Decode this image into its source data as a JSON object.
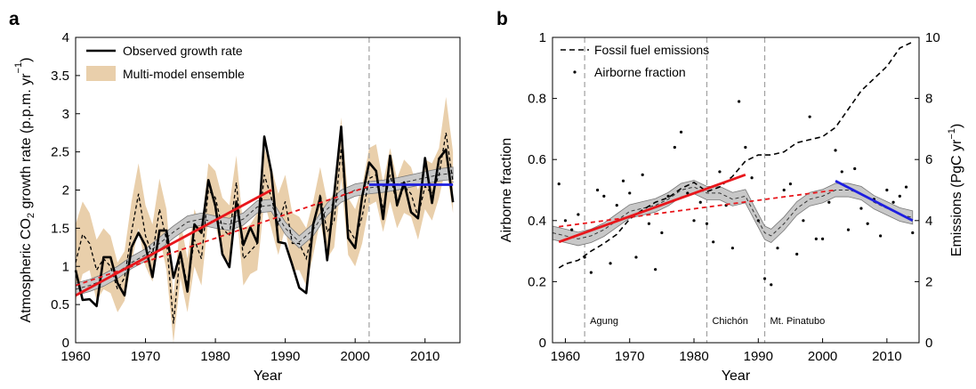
{
  "chart_data": [
    {
      "panel": "a",
      "type": "line",
      "xlabel": "Year",
      "ylabel": {
        "pre": "Atmospheric CO",
        "sub": "2",
        "mid": " growth rate (p.p.m. yr",
        "sup": "−1",
        "post": ")"
      },
      "xlim": [
        1960,
        2015
      ],
      "ylim": [
        0,
        4
      ],
      "xticks": [
        1960,
        1970,
        1980,
        1990,
        2000,
        2010
      ],
      "yticks": [
        0,
        0.5,
        1,
        1.5,
        2,
        2.5,
        3,
        3.5,
        4
      ],
      "legend": [
        "Observed growth rate",
        "Multi-model ensemble"
      ],
      "legend_position": "top-left",
      "colors": {
        "observed": "#000000",
        "ensemble_band": "#e9cfab",
        "trend_red": "#e8161b",
        "trend_blue": "#1f1fe0",
        "smooth_band": "#c8c8c8",
        "vline": "#a0a0a0"
      },
      "vertical_line_x": 2002,
      "x": [
        1960,
        1961,
        1962,
        1963,
        1964,
        1965,
        1966,
        1967,
        1968,
        1969,
        1970,
        1971,
        1972,
        1973,
        1974,
        1975,
        1976,
        1977,
        1978,
        1979,
        1980,
        1981,
        1982,
        1983,
        1984,
        1985,
        1986,
        1987,
        1988,
        1989,
        1990,
        1991,
        1992,
        1993,
        1994,
        1995,
        1996,
        1997,
        1998,
        1999,
        2000,
        2001,
        2002,
        2003,
        2004,
        2005,
        2006,
        2007,
        2008,
        2009,
        2010,
        2011,
        2012,
        2013,
        2014
      ],
      "series": [
        {
          "name": "Observed growth rate",
          "values": [
            0.95,
            0.56,
            0.57,
            0.48,
            1.12,
            1.12,
            0.78,
            0.62,
            1.25,
            1.44,
            1.27,
            0.86,
            1.47,
            1.47,
            0.85,
            1.18,
            0.67,
            1.55,
            1.44,
            2.13,
            1.79,
            1.16,
            0.99,
            1.85,
            1.28,
            1.51,
            1.31,
            2.7,
            2.24,
            1.32,
            1.3,
            1.02,
            0.72,
            0.65,
            1.55,
            1.9,
            1.08,
            1.94,
            2.83,
            1.37,
            1.24,
            1.91,
            2.36,
            2.25,
            1.62,
            2.45,
            1.8,
            2.1,
            1.71,
            1.63,
            2.42,
            1.83,
            2.41,
            2.53,
            1.84
          ]
        },
        {
          "name": "ensemble mean",
          "values": [
            1.05,
            1.42,
            1.3,
            0.95,
            1.1,
            1.0,
            0.7,
            0.85,
            1.45,
            1.95,
            1.4,
            1.15,
            1.75,
            1.35,
            0.25,
            1.2,
            0.75,
            1.35,
            1.1,
            2.0,
            1.9,
            1.5,
            1.4,
            2.1,
            1.1,
            1.2,
            1.3,
            2.2,
            1.9,
            1.55,
            1.85,
            1.3,
            1.3,
            1.1,
            1.5,
            1.95,
            1.45,
            1.6,
            2.55,
            1.5,
            1.35,
            1.65,
            2.15,
            2.2,
            1.75,
            2.2,
            1.8,
            2.05,
            1.95,
            1.65,
            2.05,
            1.95,
            2.2,
            2.75,
            2.1
          ]
        }
      ],
      "ensemble_min": [
        0.55,
        0.9,
        0.95,
        0.55,
        0.7,
        0.65,
        0.4,
        0.55,
        1.05,
        1.5,
        1.0,
        0.8,
        1.4,
        0.95,
        0.0,
        0.85,
        0.4,
        1.0,
        0.75,
        1.65,
        1.55,
        1.15,
        1.05,
        1.75,
        0.75,
        0.9,
        0.95,
        1.85,
        1.5,
        1.15,
        1.5,
        0.95,
        0.95,
        0.75,
        1.15,
        1.6,
        1.1,
        1.25,
        2.15,
        1.15,
        1.0,
        1.3,
        1.8,
        1.85,
        1.45,
        1.85,
        1.5,
        1.7,
        1.65,
        1.35,
        1.75,
        1.6,
        1.9,
        2.3,
        1.7
      ],
      "ensemble_max": [
        1.55,
        1.85,
        1.7,
        1.35,
        1.5,
        1.4,
        1.05,
        1.2,
        1.85,
        2.35,
        1.8,
        1.55,
        2.15,
        1.75,
        0.6,
        1.6,
        1.1,
        1.75,
        1.5,
        2.35,
        2.25,
        1.9,
        1.8,
        2.45,
        1.5,
        1.55,
        1.7,
        2.55,
        2.3,
        1.95,
        2.2,
        1.7,
        1.65,
        1.5,
        1.85,
        2.3,
        1.85,
        1.95,
        2.95,
        1.9,
        1.75,
        2.05,
        2.55,
        2.6,
        2.1,
        2.55,
        2.15,
        2.4,
        2.3,
        2.0,
        2.4,
        2.35,
        2.55,
        3.22,
        2.5
      ],
      "smooth_x": [
        1960,
        1962,
        1964,
        1966,
        1968,
        1970,
        1972,
        1974,
        1976,
        1978,
        1980,
        1982,
        1984,
        1986,
        1988,
        1990,
        1992,
        1994,
        1996,
        1998,
        2000,
        2002,
        2004,
        2006,
        2008,
        2010,
        2012,
        2014
      ],
      "smooth_y": [
        0.7,
        0.75,
        0.82,
        0.92,
        1.05,
        1.15,
        1.3,
        1.45,
        1.58,
        1.62,
        1.58,
        1.55,
        1.62,
        1.78,
        1.8,
        1.5,
        1.32,
        1.48,
        1.75,
        1.92,
        2.0,
        2.03,
        2.05,
        2.08,
        2.12,
        2.16,
        2.2,
        2.22
      ],
      "trends": [
        {
          "x0": 1960,
          "y0": 0.62,
          "x1": 1988,
          "y1": 2.0,
          "color": "red",
          "style": "solid"
        },
        {
          "x0": 1960,
          "y0": 0.75,
          "x1": 2002,
          "y1": 2.05,
          "color": "red",
          "style": "dashed"
        },
        {
          "x0": 2002,
          "y0": 2.07,
          "x1": 2014,
          "y1": 2.07,
          "color": "blue",
          "style": "solid"
        }
      ]
    },
    {
      "panel": "b",
      "type": "scatter",
      "xlabel": "Year",
      "ylabel": "Airborne fraction",
      "ylabel_right": {
        "pre": "Emissions (PgC yr",
        "sup": "−1",
        "post": ")"
      },
      "xlim": [
        1958,
        2015
      ],
      "ylim": [
        0,
        1
      ],
      "ylim_right": [
        0,
        10
      ],
      "xticks": [
        1960,
        1970,
        1980,
        1990,
        2000,
        2010
      ],
      "yticks": [
        0,
        0.2,
        0.4,
        0.6,
        0.8,
        1
      ],
      "yticks_right": [
        0,
        2,
        4,
        6,
        8,
        10
      ],
      "legend": [
        "Fossil fuel emissions",
        "Airborne fraction"
      ],
      "legend_position": "top-left",
      "colors": {
        "points": "#000000",
        "trend_red": "#e8161b",
        "trend_blue": "#1f1fe0",
        "smooth_band": "#c8c8c8",
        "vline": "#a0a0a0"
      },
      "eruptions": [
        {
          "year": 1963,
          "label": "Agung"
        },
        {
          "year": 1982,
          "label": "Chichón"
        },
        {
          "year": 1991,
          "label": "Mt. Pinatubo"
        }
      ],
      "airborne_x": [
        1959,
        1960,
        1961,
        1962,
        1963,
        1964,
        1965,
        1966,
        1967,
        1968,
        1969,
        1970,
        1971,
        1972,
        1973,
        1974,
        1975,
        1976,
        1977,
        1978,
        1979,
        1980,
        1981,
        1982,
        1983,
        1984,
        1985,
        1986,
        1987,
        1988,
        1989,
        1990,
        1991,
        1992,
        1993,
        1994,
        1995,
        1996,
        1997,
        1998,
        1999,
        2000,
        2001,
        2002,
        2003,
        2004,
        2005,
        2006,
        2007,
        2008,
        2009,
        2010,
        2011,
        2012,
        2013,
        2014
      ],
      "airborne_y": [
        0.52,
        0.4,
        0.37,
        0.42,
        0.28,
        0.23,
        0.5,
        0.48,
        0.26,
        0.45,
        0.53,
        0.49,
        0.28,
        0.55,
        0.39,
        0.24,
        0.36,
        0.48,
        0.64,
        0.69,
        0.49,
        0.4,
        0.46,
        0.39,
        0.33,
        0.56,
        0.45,
        0.31,
        0.79,
        0.64,
        0.54,
        0.4,
        0.21,
        0.19,
        0.31,
        0.5,
        0.52,
        0.29,
        0.4,
        0.74,
        0.34,
        0.34,
        0.46,
        0.63,
        0.56,
        0.37,
        0.57,
        0.44,
        0.39,
        0.47,
        0.35,
        0.5,
        0.46,
        0.48,
        0.51,
        0.36
      ],
      "emissions_x": [
        1959,
        1960,
        1962,
        1964,
        1966,
        1968,
        1970,
        1972,
        1974,
        1976,
        1978,
        1980,
        1982,
        1984,
        1986,
        1988,
        1990,
        1992,
        1994,
        1996,
        1998,
        2000,
        2002,
        2004,
        2006,
        2008,
        2010,
        2012,
        2014
      ],
      "emissions_y": [
        2.45,
        2.58,
        2.7,
        3.0,
        3.25,
        3.55,
        4.05,
        4.35,
        4.6,
        4.75,
        5.05,
        5.25,
        4.95,
        5.1,
        5.45,
        5.95,
        6.15,
        6.15,
        6.25,
        6.55,
        6.65,
        6.75,
        7.05,
        7.65,
        8.25,
        8.65,
        9.05,
        9.65,
        9.85
      ],
      "smooth_x": [
        1958,
        1960,
        1962,
        1964,
        1966,
        1968,
        1970,
        1972,
        1974,
        1976,
        1978,
        1980,
        1982,
        1984,
        1986,
        1988,
        1990,
        1991,
        1992,
        1994,
        1996,
        1998,
        2000,
        2002,
        2004,
        2006,
        2008,
        2010,
        2012,
        2014
      ],
      "smooth_y": [
        0.36,
        0.35,
        0.34,
        0.35,
        0.37,
        0.4,
        0.43,
        0.44,
        0.45,
        0.47,
        0.5,
        0.51,
        0.49,
        0.49,
        0.47,
        0.48,
        0.4,
        0.36,
        0.35,
        0.39,
        0.44,
        0.47,
        0.48,
        0.5,
        0.5,
        0.49,
        0.46,
        0.44,
        0.42,
        0.41
      ],
      "trends": [
        {
          "x0": 1959,
          "y0": 0.33,
          "x1": 1988,
          "y1": 0.55,
          "color": "red",
          "style": "solid"
        },
        {
          "x0": 1959,
          "y0": 0.38,
          "x1": 2002,
          "y1": 0.5,
          "color": "red",
          "style": "dashed"
        },
        {
          "x0": 2002,
          "y0": 0.53,
          "x1": 2014,
          "y1": 0.4,
          "color": "blue",
          "style": "solid"
        }
      ]
    }
  ]
}
